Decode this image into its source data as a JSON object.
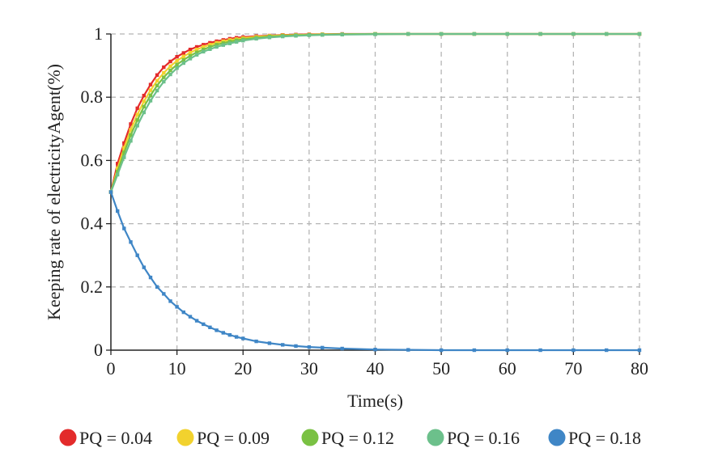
{
  "chart_data": {
    "type": "line",
    "title": "",
    "xlabel": "Time(s)",
    "ylabel": "Keeping rate of electricityAgent(%)",
    "xlim": [
      0,
      80
    ],
    "ylim": [
      0,
      1
    ],
    "x_ticks": [
      0,
      10,
      20,
      30,
      40,
      50,
      60,
      70,
      80
    ],
    "y_ticks": [
      0,
      0.2,
      0.4,
      0.6,
      0.8,
      1
    ],
    "x_tick_labels": [
      "0",
      "10",
      "20",
      "30",
      "40",
      "50",
      "60",
      "70",
      "80"
    ],
    "y_tick_labels": [
      "0",
      "0.2",
      "0.4",
      "0.6",
      "0.8",
      "1"
    ],
    "grid": true,
    "legend_position": "bottom",
    "x": [
      0,
      1,
      2,
      3,
      4,
      5,
      6,
      7,
      8,
      9,
      10,
      11,
      12,
      13,
      14,
      15,
      16,
      17,
      18,
      19,
      20,
      22,
      24,
      26,
      28,
      30,
      32,
      35,
      40,
      45,
      50,
      55,
      60,
      65,
      70,
      75,
      80
    ],
    "series": [
      {
        "name": "PQ = 0.04",
        "color": "#e32b2b",
        "values": [
          0.5,
          0.59,
          0.655,
          0.715,
          0.765,
          0.805,
          0.84,
          0.87,
          0.895,
          0.913,
          0.928,
          0.94,
          0.951,
          0.959,
          0.966,
          0.972,
          0.977,
          0.981,
          0.985,
          0.988,
          0.99,
          0.993,
          0.995,
          0.997,
          0.998,
          0.999,
          0.999,
          1.0,
          1.0,
          1.0,
          1.0,
          1.0,
          1.0,
          1.0,
          1.0,
          1.0,
          1.0
        ]
      },
      {
        "name": "PQ = 0.09",
        "color": "#f2d22e",
        "values": [
          0.5,
          0.575,
          0.64,
          0.697,
          0.745,
          0.787,
          0.822,
          0.852,
          0.877,
          0.898,
          0.915,
          0.929,
          0.941,
          0.951,
          0.959,
          0.966,
          0.972,
          0.977,
          0.981,
          0.984,
          0.987,
          0.991,
          0.994,
          0.996,
          0.997,
          0.998,
          0.999,
          0.999,
          1.0,
          1.0,
          1.0,
          1.0,
          1.0,
          1.0,
          1.0,
          1.0,
          1.0
        ]
      },
      {
        "name": "PQ = 0.12",
        "color": "#7ac143",
        "values": [
          0.5,
          0.565,
          0.625,
          0.68,
          0.728,
          0.77,
          0.806,
          0.837,
          0.863,
          0.885,
          0.903,
          0.918,
          0.931,
          0.942,
          0.951,
          0.959,
          0.966,
          0.971,
          0.976,
          0.98,
          0.983,
          0.988,
          0.992,
          0.994,
          0.996,
          0.997,
          0.998,
          0.999,
          1.0,
          1.0,
          1.0,
          1.0,
          1.0,
          1.0,
          1.0,
          1.0,
          1.0
        ]
      },
      {
        "name": "PQ = 0.16",
        "color": "#6cc08b",
        "values": [
          0.5,
          0.555,
          0.61,
          0.662,
          0.71,
          0.752,
          0.789,
          0.821,
          0.849,
          0.872,
          0.892,
          0.908,
          0.922,
          0.934,
          0.944,
          0.952,
          0.959,
          0.965,
          0.97,
          0.975,
          0.979,
          0.985,
          0.989,
          0.992,
          0.994,
          0.996,
          0.997,
          0.998,
          0.999,
          1.0,
          1.0,
          1.0,
          1.0,
          1.0,
          1.0,
          1.0,
          1.0
        ]
      },
      {
        "name": "PQ = 0.18",
        "color": "#3f86c6",
        "values": [
          0.5,
          0.44,
          0.385,
          0.342,
          0.3,
          0.262,
          0.23,
          0.2,
          0.178,
          0.155,
          0.137,
          0.12,
          0.106,
          0.093,
          0.082,
          0.072,
          0.063,
          0.055,
          0.048,
          0.042,
          0.037,
          0.028,
          0.022,
          0.017,
          0.013,
          0.01,
          0.008,
          0.005,
          0.002,
          0.001,
          0.0,
          0.0,
          0.0,
          0.0,
          0.0,
          0.0,
          0.0
        ]
      }
    ]
  }
}
